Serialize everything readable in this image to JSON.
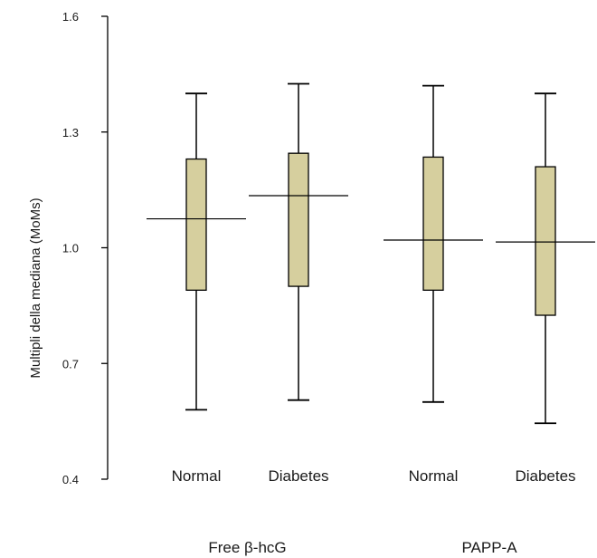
{
  "chart_data": {
    "type": "box",
    "title": "",
    "ylabel": "Multipli della mediana (MoMs)",
    "xlabel": "",
    "ylim": [
      0.4,
      1.6
    ],
    "yticks": [
      "0.4",
      "0.7",
      "1.0",
      "1.3",
      "1.6"
    ],
    "grid": false,
    "colors": {
      "box_fill": "#d6cf9e",
      "stroke": "#000000"
    },
    "groups": [
      {
        "name": "Free β-hcG",
        "boxes": [
          {
            "category": "Normal",
            "min": 0.58,
            "q1": 0.89,
            "median": 1.075,
            "q3": 1.23,
            "max": 1.4
          },
          {
            "category": "Diabetes",
            "min": 0.605,
            "q1": 0.9,
            "median": 1.135,
            "q3": 1.245,
            "max": 1.425
          }
        ]
      },
      {
        "name": "PAPP-A",
        "boxes": [
          {
            "category": "Normal",
            "min": 0.6,
            "q1": 0.89,
            "median": 1.02,
            "q3": 1.235,
            "max": 1.42
          },
          {
            "category": "Diabetes",
            "min": 0.545,
            "q1": 0.825,
            "median": 1.015,
            "q3": 1.21,
            "max": 1.4
          }
        ]
      }
    ]
  }
}
